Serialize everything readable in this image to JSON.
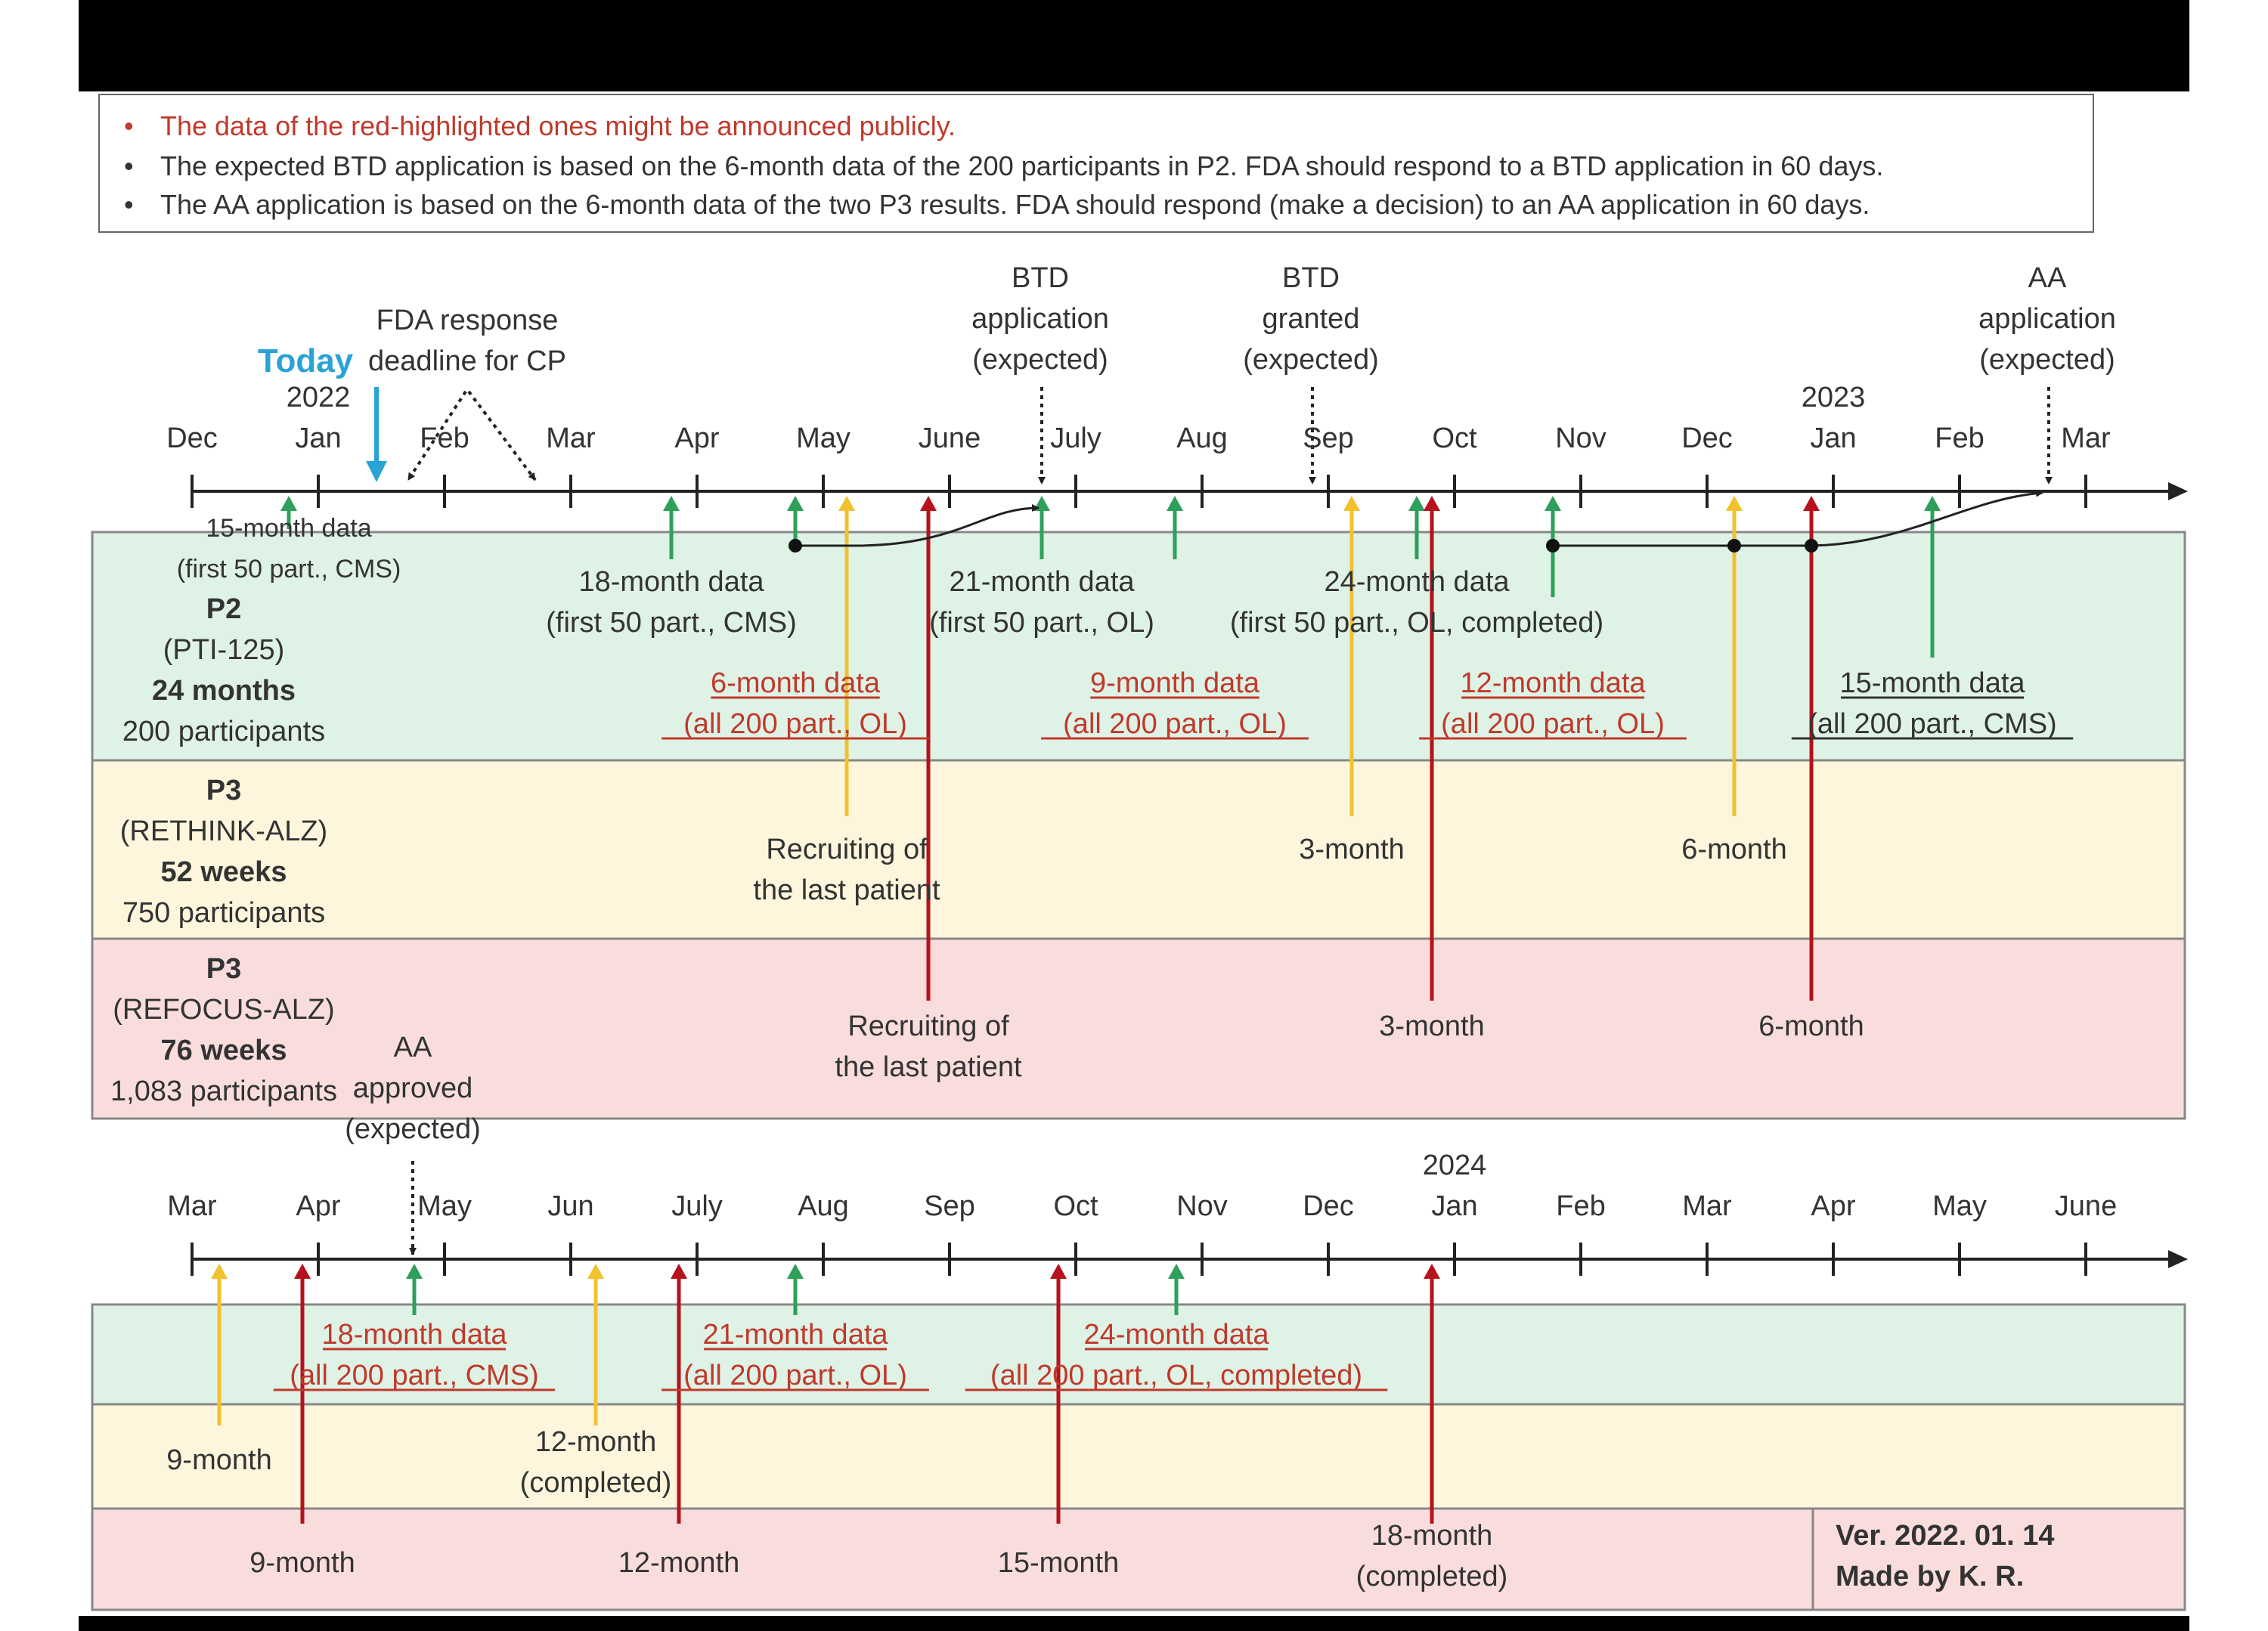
{
  "notes": [
    "The data of the red-highlighted ones might be announced publicly.",
    "The expected BTD application is based on the 6-month data of the 200 participants in P2. FDA should respond to a BTD application in 60 days.",
    "The AA application is based on the 6-month data of the two P3 results. FDA should respond (make a decision) to an AA application in 60 days."
  ],
  "colors": {
    "green": "#2ea05a",
    "yellow": "#f2c12e",
    "red": "#b5121b",
    "today": "#29a3d6",
    "note_red": "#c0392b",
    "band_p2": "#dff2e6",
    "band_rethink": "#fdf6dc",
    "band_refocus": "#f9dddd"
  },
  "timeline1": {
    "months": [
      "Dec",
      "Jan",
      "Feb",
      "Mar",
      "Apr",
      "May",
      "June",
      "July",
      "Aug",
      "Sep",
      "Oct",
      "Nov",
      "Dec",
      "Jan",
      "Feb",
      "Mar"
    ],
    "years": [
      {
        "month_index": 1,
        "label": "2022"
      },
      {
        "month_index": 13,
        "label": "2023"
      }
    ],
    "today_label": "Today",
    "events_above": [
      {
        "id": "fda-cp",
        "lines": [
          "FDA response",
          "deadline for CP"
        ]
      },
      {
        "id": "btd-app",
        "lines": [
          "BTD",
          "application",
          "(expected)"
        ]
      },
      {
        "id": "btd-granted",
        "lines": [
          "BTD",
          "granted",
          "(expected)"
        ]
      },
      {
        "id": "aa-app",
        "lines": [
          "AA",
          "application",
          "(expected)"
        ]
      }
    ],
    "studies": [
      {
        "id": "p2",
        "lines": [
          "P2",
          "(PTI-125)",
          "24 months",
          "200 participants"
        ]
      },
      {
        "id": "rethink",
        "lines": [
          "P3",
          "(RETHINK-ALZ)",
          "52 weeks",
          "750 participants"
        ]
      },
      {
        "id": "refocus",
        "lines": [
          "P3",
          "(REFOCUS-ALZ)",
          "76 weeks",
          "1,083 participants"
        ]
      }
    ],
    "p2_labels": [
      {
        "lines": [
          "15-month data",
          "(first 50 part., CMS)"
        ],
        "red": false
      },
      {
        "lines": [
          "18-month data",
          "(first 50 part., CMS)"
        ],
        "red": false
      },
      {
        "lines": [
          "21-month data",
          "(first 50 part., OL)"
        ],
        "red": false
      },
      {
        "lines": [
          "24-month data",
          "(first 50 part., OL, completed)"
        ],
        "red": false
      },
      {
        "lines": [
          "6-month data",
          "(all 200 part., OL)"
        ],
        "red": true
      },
      {
        "lines": [
          "9-month data",
          "(all 200 part., OL)"
        ],
        "red": true
      },
      {
        "lines": [
          "12-month data",
          "(all 200 part., OL)"
        ],
        "red": true
      },
      {
        "lines": [
          "15-month data",
          "(all 200 part., CMS)"
        ],
        "red": true
      }
    ],
    "rethink_labels": [
      {
        "lines": [
          "Recruiting of",
          "the last patient"
        ]
      },
      {
        "lines": [
          "3-month"
        ]
      },
      {
        "lines": [
          "6-month"
        ]
      }
    ],
    "refocus_labels": [
      {
        "lines": [
          "Recruiting of",
          "the last patient"
        ]
      },
      {
        "lines": [
          "3-month"
        ]
      },
      {
        "lines": [
          "6-month"
        ]
      }
    ],
    "aa_approved": [
      "AA",
      "approved",
      "(expected)"
    ]
  },
  "timeline2": {
    "months": [
      "Mar",
      "Apr",
      "May",
      "Jun",
      "July",
      "Aug",
      "Sep",
      "Oct",
      "Nov",
      "Dec",
      "Jan",
      "Feb",
      "Mar",
      "Apr",
      "May",
      "June"
    ],
    "years": [
      {
        "month_index": 10,
        "label": "2024"
      }
    ],
    "p2_labels": [
      {
        "lines": [
          "18-month data",
          "(all 200 part., CMS)"
        ],
        "red": true
      },
      {
        "lines": [
          "21-month data",
          "(all 200 part., OL)"
        ],
        "red": true
      },
      {
        "lines": [
          "24-month data",
          "(all 200 part., OL, completed)"
        ],
        "red": true
      }
    ],
    "rethink_labels": [
      {
        "lines": [
          "9-month"
        ]
      },
      {
        "lines": [
          "12-month",
          "(completed)"
        ]
      }
    ],
    "refocus_labels": [
      {
        "lines": [
          "9-month"
        ]
      },
      {
        "lines": [
          "12-month"
        ]
      },
      {
        "lines": [
          "15-month"
        ]
      },
      {
        "lines": [
          "18-month",
          "(completed)"
        ]
      }
    ]
  },
  "version": {
    "lines": [
      "Ver. 2022. 01. 14",
      "Made by K. R."
    ]
  }
}
